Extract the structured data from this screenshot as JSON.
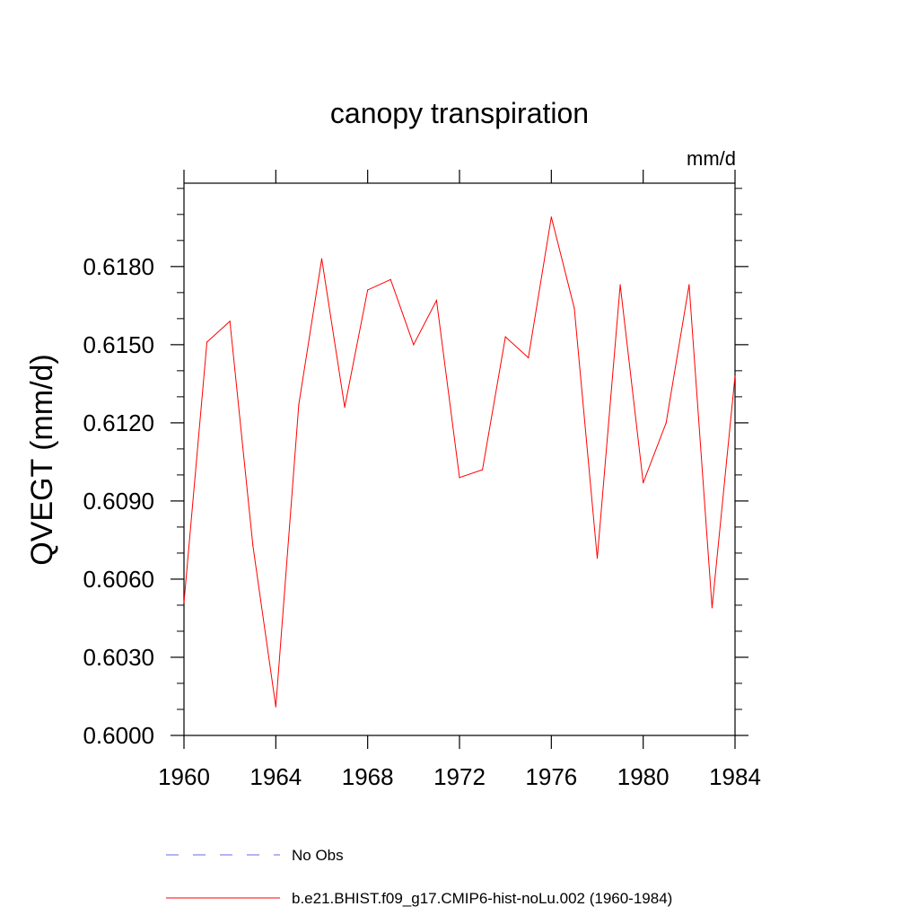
{
  "chart_data": {
    "type": "line",
    "title": "canopy transpiration",
    "units_label": "mm/d",
    "ylabel": "QVEGT  (mm/d)",
    "xlabel": "",
    "xlim": [
      1960,
      1984
    ],
    "ylim": [
      0.6,
      0.6212
    ],
    "x_ticks": [
      1960,
      1964,
      1968,
      1972,
      1976,
      1980,
      1984
    ],
    "x_tick_labels": [
      "1960",
      "1964",
      "1968",
      "1972",
      "1976",
      "1980",
      "1984"
    ],
    "y_ticks": [
      0.6,
      0.603,
      0.606,
      0.609,
      0.612,
      0.615,
      0.618
    ],
    "y_tick_labels": [
      "0.6000",
      "0.6030",
      "0.6060",
      "0.6090",
      "0.6120",
      "0.6150",
      "0.6180"
    ],
    "y_minor_step": 0.001,
    "x": [
      1960,
      1961,
      1962,
      1963,
      1964,
      1965,
      1966,
      1967,
      1968,
      1969,
      1970,
      1971,
      1972,
      1973,
      1974,
      1975,
      1976,
      1977,
      1978,
      1979,
      1980,
      1981,
      1982,
      1983,
      1984
    ],
    "series": [
      {
        "name": "b.e21.BHIST.f09_g17.CMIP6-hist-noLu.002 (1960-1984)",
        "color": "#ff0000",
        "style": "solid",
        "values": [
          0.6051,
          0.6151,
          0.6159,
          0.6073,
          0.6011,
          0.6127,
          0.6183,
          0.6126,
          0.6171,
          0.6175,
          0.615,
          0.6167,
          0.6099,
          0.6102,
          0.6153,
          0.6145,
          0.6199,
          0.6164,
          0.6068,
          0.6173,
          0.6097,
          0.612,
          0.6173,
          0.6049,
          0.6138
        ]
      }
    ],
    "legend": [
      {
        "label": "No Obs",
        "color": "#6a6ae6",
        "style": "dashed"
      },
      {
        "label": "b.e21.BHIST.f09_g17.CMIP6-hist-noLu.002 (1960-1984)",
        "color": "#ff0000",
        "style": "solid"
      }
    ],
    "grid": false,
    "legend_position": "bottom"
  }
}
